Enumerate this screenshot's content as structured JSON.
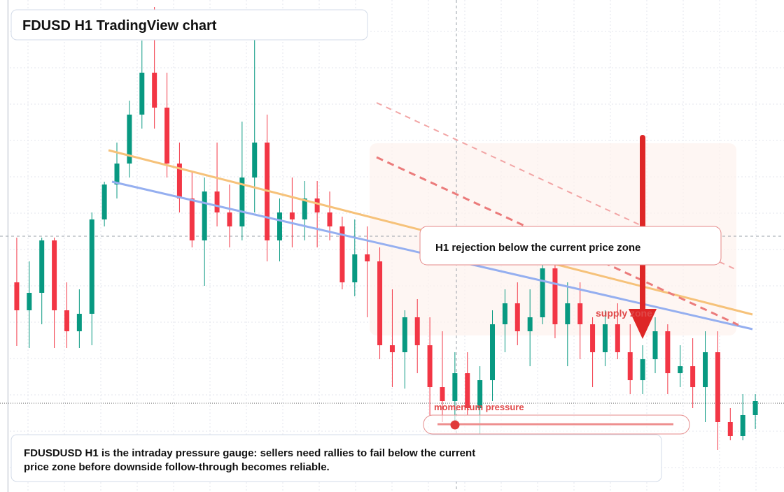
{
  "header": {
    "title": "FDUSD H1 TradingView chart"
  },
  "annotations": {
    "rejection": "H1 rejection below the current price zone",
    "supply": "supply zone",
    "momentum": "momentum pressure"
  },
  "caption": [
    "FDUSDUSD H1 is the intraday pressure gauge: sellers need rallies to fail below the current",
    "price zone before downside follow-through becomes reliable."
  ],
  "chart_data": {
    "type": "candlestick",
    "ylim": [
      0,
      704
    ],
    "up_color": "#089981",
    "down_color": "#f23645",
    "open": [
      300,
      260,
      285,
      360,
      260,
      230,
      255,
      390,
      440,
      470,
      540,
      600,
      550,
      470,
      420,
      360,
      430,
      400,
      380,
      450,
      500,
      360,
      400,
      390,
      420,
      400,
      380,
      300,
      340,
      330,
      210,
      200,
      250,
      210,
      150,
      130,
      170,
      120,
      160,
      240,
      270,
      230,
      250,
      320,
      240,
      270,
      240,
      200,
      240,
      200,
      160,
      190,
      230,
      170,
      180,
      150,
      200,
      100,
      80,
      110
    ],
    "high": [
      364,
      330,
      364,
      364,
      300,
      290,
      400,
      444,
      500,
      560,
      646,
      694,
      600,
      500,
      460,
      450,
      500,
      440,
      530,
      660,
      540,
      420,
      450,
      445,
      445,
      430,
      394,
      390,
      380,
      350,
      290,
      260,
      276,
      250,
      230,
      200,
      200,
      180,
      260,
      290,
      300,
      290,
      340,
      350,
      300,
      300,
      250,
      260,
      270,
      240,
      210,
      250,
      240,
      210,
      220,
      230,
      230,
      120,
      140,
      140
    ],
    "low": [
      209,
      206,
      240,
      206,
      206,
      206,
      210,
      380,
      420,
      450,
      520,
      520,
      450,
      400,
      350,
      295,
      380,
      350,
      360,
      400,
      330,
      330,
      350,
      360,
      350,
      360,
      290,
      280,
      250,
      190,
      150,
      148,
      170,
      110,
      100,
      90,
      110,
      80,
      130,
      200,
      210,
      180,
      240,
      220,
      180,
      190,
      150,
      180,
      190,
      140,
      140,
      170,
      140,
      150,
      120,
      100,
      60,
      74,
      74,
      90
    ],
    "close": [
      260,
      285,
      360,
      260,
      230,
      255,
      390,
      440,
      470,
      540,
      600,
      550,
      470,
      420,
      360,
      430,
      400,
      380,
      450,
      500,
      360,
      400,
      390,
      420,
      400,
      380,
      300,
      340,
      330,
      210,
      200,
      250,
      210,
      150,
      130,
      170,
      120,
      160,
      240,
      270,
      230,
      250,
      320,
      240,
      270,
      240,
      200,
      240,
      200,
      160,
      190,
      230,
      170,
      180,
      150,
      200,
      100,
      80,
      110,
      130
    ]
  }
}
